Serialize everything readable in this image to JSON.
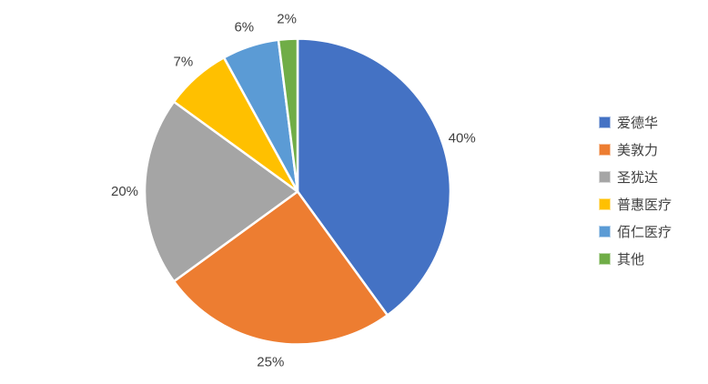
{
  "chart_data": {
    "type": "pie",
    "labels": [
      "爱德华",
      "美敦力",
      "圣犹达",
      "普惠医疗",
      "佰仁医疗",
      "其他"
    ],
    "values": [
      40,
      25,
      20,
      7,
      6,
      2
    ],
    "data_labels": [
      "40%",
      "25%",
      "20%",
      "7%",
      "6%",
      "2%"
    ],
    "colors": [
      "#4472C4",
      "#ED7D31",
      "#A5A5A5",
      "#FFC000",
      "#5B9BD5",
      "#70AD47"
    ],
    "label_color": "#404040",
    "slice_border_color": "#FFFFFF",
    "legend_position": "right",
    "start_angle_deg": 0,
    "direction": "clockwise",
    "title": ""
  }
}
